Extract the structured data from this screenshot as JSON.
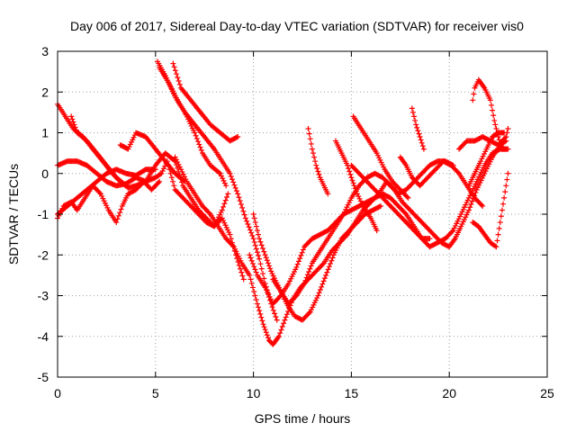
{
  "chart_data": {
    "type": "scatter",
    "title": "Day 006 of 2017, Sidereal Day-to-day VTEC variation (SDTVAR) for receiver vis0",
    "xlabel": "GPS time / hours",
    "ylabel": "SDTVAR / TECUs",
    "xlim": [
      0,
      25
    ],
    "ylim": [
      -5,
      3
    ],
    "xticks": [
      "0",
      "5",
      "10",
      "15",
      "20",
      "25"
    ],
    "yticks": [
      "3",
      "2",
      "1",
      "0",
      "-1",
      "-2",
      "-3",
      "-4",
      "-5"
    ],
    "grid": true,
    "marker": "plus",
    "color": "#ff0000",
    "tracks": [
      [
        [
          0.0,
          1.7
        ],
        [
          0.4,
          1.4
        ],
        [
          0.8,
          1.1
        ],
        [
          1.3,
          0.9
        ],
        [
          1.8,
          0.6
        ],
        [
          2.3,
          0.3
        ],
        [
          2.8,
          0.0
        ],
        [
          3.2,
          -0.2
        ],
        [
          3.6,
          -0.35
        ],
        [
          4.0,
          -0.3
        ],
        [
          4.5,
          -0.2
        ],
        [
          5.0,
          0.2
        ],
        [
          5.5,
          0.5
        ],
        [
          6.0,
          0.3
        ],
        [
          6.4,
          -0.3
        ],
        [
          6.8,
          -0.6
        ],
        [
          7.2,
          -0.9
        ],
        [
          7.6,
          -1.1
        ],
        [
          8.0,
          -1.3
        ],
        [
          8.4,
          -1.1
        ],
        [
          8.8,
          -1.5
        ],
        [
          9.1,
          -2.0
        ],
        [
          9.5,
          -2.6
        ]
      ],
      [
        [
          0.0,
          0.2
        ],
        [
          0.5,
          0.3
        ],
        [
          1.0,
          0.3
        ],
        [
          1.5,
          0.2
        ],
        [
          2.0,
          0.0
        ],
        [
          2.5,
          -0.2
        ],
        [
          3.0,
          -0.3
        ],
        [
          3.5,
          -0.25
        ],
        [
          4.0,
          -0.1
        ],
        [
          4.5,
          -0.2
        ],
        [
          5.0,
          -0.1
        ],
        [
          5.3,
          0.0
        ],
        [
          5.6,
          0.3
        ],
        [
          6.0,
          -0.4
        ],
        [
          6.4,
          -0.6
        ],
        [
          6.8,
          -0.8
        ],
        [
          7.2,
          -1.0
        ],
        [
          7.6,
          -1.2
        ],
        [
          8.0,
          -1.3
        ],
        [
          8.4,
          -0.9
        ],
        [
          8.7,
          -0.5
        ]
      ],
      [
        [
          0.0,
          -1.1
        ],
        [
          0.3,
          -0.8
        ],
        [
          0.7,
          -0.7
        ],
        [
          1.0,
          -0.9
        ],
        [
          1.4,
          -0.6
        ],
        [
          1.8,
          -0.3
        ],
        [
          2.2,
          -0.5
        ],
        [
          2.6,
          -0.9
        ],
        [
          3.0,
          -1.2
        ],
        [
          3.3,
          -0.8
        ],
        [
          3.6,
          -0.5
        ],
        [
          4.0,
          -0.4
        ],
        [
          4.4,
          -0.2
        ],
        [
          4.8,
          -0.4
        ],
        [
          5.2,
          -0.2
        ]
      ],
      [
        [
          0.0,
          -1.0
        ],
        [
          0.5,
          -0.8
        ],
        [
          1.0,
          -0.6
        ],
        [
          1.5,
          -0.4
        ],
        [
          2.0,
          -0.2
        ],
        [
          2.5,
          0.0
        ],
        [
          3.0,
          0.1
        ],
        [
          3.5,
          0.0
        ],
        [
          4.0,
          -0.05
        ],
        [
          4.5,
          0.1
        ],
        [
          5.0,
          0.1
        ]
      ],
      [
        [
          0.7,
          1.4
        ],
        [
          1.0,
          1.0
        ],
        [
          1.5,
          0.8
        ],
        [
          2.0,
          0.5
        ],
        [
          2.5,
          0.2
        ],
        [
          3.0,
          -0.1
        ],
        [
          3.5,
          -0.3
        ]
      ],
      [
        [
          3.2,
          0.7
        ],
        [
          3.6,
          0.6
        ],
        [
          4.0,
          1.0
        ],
        [
          4.5,
          0.9
        ],
        [
          5.0,
          0.6
        ],
        [
          5.5,
          0.3
        ],
        [
          6.0,
          0.0
        ],
        [
          6.5,
          -0.2
        ]
      ],
      [
        [
          5.1,
          2.75
        ],
        [
          5.5,
          2.4
        ],
        [
          6.0,
          1.9
        ],
        [
          6.5,
          1.5
        ],
        [
          7.0,
          1.2
        ],
        [
          7.5,
          0.9
        ],
        [
          8.0,
          0.6
        ],
        [
          8.4,
          0.3
        ],
        [
          8.8,
          0.0
        ],
        [
          9.2,
          -0.5
        ],
        [
          9.6,
          -1.1
        ],
        [
          10.0,
          -1.6
        ],
        [
          10.3,
          -2.1
        ],
        [
          10.6,
          -2.7
        ],
        [
          10.9,
          -3.2
        ],
        [
          11.2,
          -3.6
        ]
      ],
      [
        [
          5.2,
          2.6
        ],
        [
          5.7,
          2.2
        ],
        [
          6.1,
          1.8
        ],
        [
          6.5,
          1.5
        ],
        [
          7.0,
          1.0
        ],
        [
          7.4,
          0.5
        ],
        [
          7.8,
          0.2
        ],
        [
          8.3,
          0.0
        ],
        [
          8.6,
          -0.3
        ]
      ],
      [
        [
          5.9,
          2.7
        ],
        [
          6.3,
          2.1
        ],
        [
          6.8,
          1.8
        ],
        [
          7.3,
          1.5
        ],
        [
          7.8,
          1.2
        ],
        [
          8.3,
          1.0
        ],
        [
          8.8,
          0.8
        ],
        [
          9.2,
          0.9
        ]
      ],
      [
        [
          6.0,
          0.4
        ],
        [
          6.3,
          0.1
        ],
        [
          6.6,
          -0.2
        ],
        [
          7.0,
          -0.5
        ],
        [
          7.4,
          -0.8
        ],
        [
          7.8,
          -1.0
        ],
        [
          8.2,
          -1.3
        ],
        [
          8.6,
          -1.6
        ],
        [
          9.0,
          -1.8
        ],
        [
          9.4,
          -2.2
        ],
        [
          9.8,
          -2.5
        ],
        [
          10.2,
          -3.2
        ],
        [
          10.5,
          -3.7
        ],
        [
          10.8,
          -4.1
        ],
        [
          11.0,
          -4.2
        ],
        [
          11.3,
          -4.0
        ],
        [
          11.6,
          -3.6
        ],
        [
          12.0,
          -3.1
        ],
        [
          12.4,
          -2.8
        ],
        [
          12.8,
          -2.6
        ],
        [
          13.2,
          -2.4
        ],
        [
          13.6,
          -2.2
        ],
        [
          14.0,
          -1.9
        ],
        [
          14.4,
          -1.7
        ],
        [
          14.8,
          -1.5
        ],
        [
          15.2,
          -1.2
        ],
        [
          15.6,
          -0.9
        ],
        [
          16.0,
          -0.7
        ],
        [
          16.4,
          -0.5
        ],
        [
          16.8,
          -0.2
        ],
        [
          17.2,
          -0.4
        ],
        [
          17.6,
          -0.7
        ],
        [
          18.0,
          -0.9
        ],
        [
          18.4,
          -1.1
        ],
        [
          18.8,
          -1.3
        ],
        [
          19.2,
          -1.5
        ],
        [
          19.6,
          -1.7
        ],
        [
          20.0,
          -1.8
        ],
        [
          20.3,
          -1.6
        ],
        [
          20.6,
          -1.3
        ],
        [
          21.0,
          -0.9
        ],
        [
          21.4,
          -0.4
        ],
        [
          21.8,
          0.0
        ],
        [
          22.2,
          0.4
        ],
        [
          22.6,
          0.7
        ],
        [
          22.9,
          0.8
        ]
      ],
      [
        [
          9.8,
          -2.0
        ],
        [
          10.2,
          -2.5
        ],
        [
          10.6,
          -2.8
        ],
        [
          11.0,
          -3.2
        ],
        [
          11.4,
          -3.0
        ],
        [
          11.8,
          -2.7
        ],
        [
          12.2,
          -2.3
        ],
        [
          12.6,
          -1.8
        ],
        [
          13.0,
          -1.6
        ],
        [
          13.4,
          -1.5
        ],
        [
          13.8,
          -1.4
        ],
        [
          14.2,
          -1.2
        ],
        [
          14.6,
          -1.0
        ],
        [
          15.0,
          -0.9
        ],
        [
          15.4,
          -0.8
        ],
        [
          15.8,
          -0.7
        ],
        [
          16.2,
          -0.6
        ],
        [
          16.6,
          -0.5
        ],
        [
          17.0,
          -0.6
        ],
        [
          17.4,
          -0.8
        ],
        [
          17.8,
          -1.0
        ],
        [
          18.2,
          -1.3
        ],
        [
          18.6,
          -1.6
        ],
        [
          19.0,
          -1.8
        ],
        [
          19.4,
          -1.7
        ],
        [
          19.8,
          -1.6
        ],
        [
          20.2,
          -1.4
        ],
        [
          20.6,
          -1.0
        ],
        [
          21.0,
          -0.6
        ],
        [
          21.4,
          -0.2
        ],
        [
          21.8,
          0.2
        ],
        [
          22.2,
          0.5
        ],
        [
          22.6,
          0.6
        ],
        [
          23.0,
          0.6
        ]
      ],
      [
        [
          11.0,
          -2.6
        ],
        [
          11.4,
          -2.9
        ],
        [
          11.8,
          -3.2
        ],
        [
          12.2,
          -3.0
        ],
        [
          12.6,
          -2.7
        ],
        [
          13.0,
          -2.2
        ],
        [
          13.4,
          -1.9
        ],
        [
          13.8,
          -1.6
        ],
        [
          14.2,
          -1.3
        ],
        [
          14.6,
          -1.0
        ],
        [
          15.0,
          -0.6
        ],
        [
          15.4,
          -0.3
        ],
        [
          15.8,
          -0.1
        ],
        [
          16.2,
          0.0
        ],
        [
          16.6,
          -0.1
        ],
        [
          17.0,
          -0.3
        ],
        [
          17.4,
          -0.5
        ],
        [
          17.8,
          -0.4
        ],
        [
          18.2,
          -0.2
        ],
        [
          18.6,
          0.0
        ],
        [
          19.0,
          0.2
        ],
        [
          19.4,
          0.3
        ],
        [
          19.8,
          0.3
        ],
        [
          20.2,
          0.2
        ]
      ],
      [
        [
          10.0,
          -1.0
        ],
        [
          10.3,
          -1.6
        ],
        [
          10.6,
          -2.0
        ],
        [
          10.9,
          -2.4
        ],
        [
          11.3,
          -2.8
        ],
        [
          11.7,
          -3.2
        ],
        [
          12.1,
          -3.5
        ],
        [
          12.5,
          -3.6
        ],
        [
          12.9,
          -3.4
        ],
        [
          13.3,
          -3.0
        ],
        [
          13.7,
          -2.5
        ],
        [
          14.1,
          -2.0
        ],
        [
          14.5,
          -1.6
        ],
        [
          14.9,
          -1.4
        ],
        [
          15.3,
          -1.2
        ],
        [
          15.7,
          -1.0
        ],
        [
          16.1,
          -0.9
        ],
        [
          16.5,
          -0.8
        ]
      ],
      [
        [
          12.8,
          1.1
        ],
        [
          13.0,
          0.6
        ],
        [
          13.2,
          0.2
        ],
        [
          13.4,
          -0.1
        ],
        [
          13.6,
          -0.3
        ],
        [
          13.8,
          -0.5
        ]
      ],
      [
        [
          14.2,
          0.8
        ],
        [
          14.5,
          0.5
        ],
        [
          14.8,
          0.2
        ],
        [
          15.0,
          -0.1
        ],
        [
          15.3,
          -0.5
        ],
        [
          15.6,
          -0.8
        ],
        [
          16.0,
          -1.1
        ],
        [
          16.3,
          -1.4
        ]
      ],
      [
        [
          15.1,
          1.4
        ],
        [
          15.5,
          1.1
        ],
        [
          15.9,
          0.8
        ],
        [
          16.3,
          0.5
        ],
        [
          16.7,
          0.1
        ],
        [
          17.1,
          -0.2
        ],
        [
          17.5,
          -0.4
        ],
        [
          17.9,
          -0.6
        ]
      ],
      [
        [
          15.0,
          0.2
        ],
        [
          15.4,
          0.0
        ],
        [
          15.8,
          -0.2
        ],
        [
          16.2,
          -0.4
        ],
        [
          16.6,
          -0.6
        ],
        [
          17.0,
          -0.8
        ],
        [
          17.4,
          -1.0
        ],
        [
          17.8,
          -1.2
        ],
        [
          18.2,
          -1.4
        ],
        [
          18.6,
          -1.6
        ],
        [
          19.0,
          -1.6
        ]
      ],
      [
        [
          17.5,
          0.4
        ],
        [
          17.8,
          0.2
        ],
        [
          18.1,
          -0.1
        ],
        [
          18.5,
          -0.3
        ],
        [
          18.9,
          -0.1
        ],
        [
          19.3,
          0.1
        ],
        [
          19.7,
          0.3
        ],
        [
          20.1,
          0.2
        ],
        [
          20.5,
          0.0
        ],
        [
          20.9,
          -0.3
        ],
        [
          21.3,
          -0.6
        ],
        [
          21.7,
          -0.8
        ]
      ],
      [
        [
          18.1,
          1.6
        ],
        [
          18.3,
          1.2
        ],
        [
          18.5,
          0.9
        ],
        [
          18.7,
          0.6
        ]
      ],
      [
        [
          20.5,
          0.6
        ],
        [
          20.9,
          0.8
        ],
        [
          21.3,
          0.8
        ],
        [
          21.7,
          0.9
        ],
        [
          22.1,
          0.8
        ],
        [
          22.5,
          0.7
        ],
        [
          22.9,
          0.9
        ],
        [
          23.0,
          1.1
        ]
      ],
      [
        [
          21.0,
          -0.3
        ],
        [
          21.3,
          0.0
        ],
        [
          21.6,
          0.3
        ],
        [
          21.9,
          0.6
        ],
        [
          22.2,
          0.9
        ],
        [
          22.5,
          1.0
        ],
        [
          22.8,
          1.0
        ]
      ],
      [
        [
          21.2,
          1.8
        ],
        [
          21.3,
          2.1
        ],
        [
          21.5,
          2.3
        ],
        [
          21.8,
          2.1
        ],
        [
          22.1,
          1.8
        ],
        [
          22.3,
          1.3
        ],
        [
          22.5,
          0.9
        ],
        [
          22.7,
          0.6
        ],
        [
          22.9,
          0.6
        ]
      ],
      [
        [
          21.2,
          -1.2
        ],
        [
          21.5,
          -1.3
        ],
        [
          21.8,
          -1.5
        ],
        [
          22.1,
          -1.7
        ],
        [
          22.4,
          -1.8
        ],
        [
          22.6,
          -1.2
        ],
        [
          22.8,
          -0.6
        ],
        [
          23.0,
          0.0
        ]
      ]
    ]
  }
}
